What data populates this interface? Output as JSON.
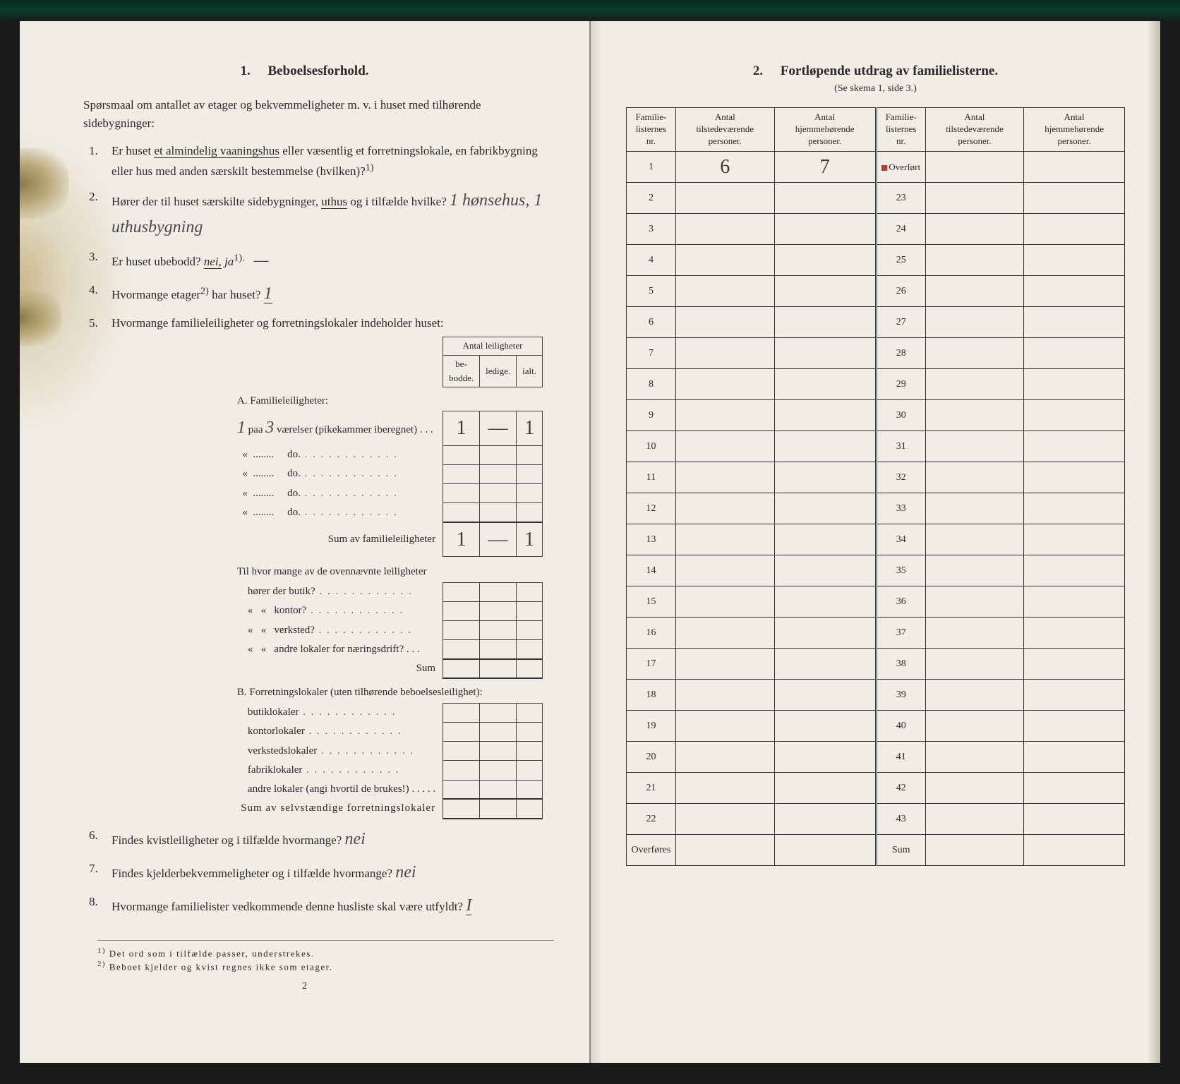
{
  "left": {
    "section_num": "1.",
    "section_title": "Beboelsesforhold.",
    "intro": "Spørsmaal om antallet av etager og bekvemmeligheter m. v. i huset med tilhørende sidebygninger:",
    "q1": "Er huset et almindelig vaaningshus eller væsentlig et forretningslokale, en fabrikbygning eller hus med anden særskilt bestemmelse (hvilken)?",
    "q1_sup": "1)",
    "q2": "Hører der til huset særskilte sidebygninger, uthus og i tilfælde hvilke?",
    "q2_hand": "1 hønsehus, 1 uthusbygning",
    "q3_a": "Er huset ubebodd?",
    "q3_b": "nei,",
    "q3_c": " ja",
    "q3_sup": "1).",
    "q3_hand": "—",
    "q4_a": "Hvormange etager",
    "q4_sup": "2)",
    "q4_b": " har huset?",
    "q4_hand": "1",
    "q5": "Hvormange familieleiligheter og forretningslokaler indeholder huset:",
    "tbl_header": "Antal leiligheter",
    "tbl_h1": "be-\nbodde.",
    "tbl_h2": "ledige.",
    "tbl_h3": "ialt.",
    "a_title": "A. Familieleiligheter:",
    "a_row1_pre": "1",
    "a_row1_mid": " paa ",
    "a_row1_hand": "3",
    "a_row1_post": " værelser (pikekammer iberegnet)",
    "a_row_do": "do.",
    "a_sum": "Sum av familieleiligheter",
    "a_v1": "1",
    "a_v2": "—",
    "a_v3": "1",
    "a_sum_v1": "1",
    "a_sum_v2": "—",
    "a_sum_v3": "1",
    "sub_q": "Til hvor mange av de ovennævnte leiligheter",
    "sub_1": "hører der butik?",
    "sub_2": "kontor?",
    "sub_3": "verksted?",
    "sub_4": "andre lokaler for næringsdrift?",
    "sub_sum": "Sum",
    "b_title": "B. Forretningslokaler (uten tilhørende beboelsesleilighet):",
    "b_1": "butiklokaler",
    "b_2": "kontorlokaler",
    "b_3": "verkstedslokaler",
    "b_4": "fabriklokaler",
    "b_5": "andre lokaler (angi hvortil de brukes!)",
    "b_sum": "Sum av selvstændige forretningslokaler",
    "q6": "Findes kvistleiligheter og i tilfælde hvormange?",
    "q6_hand": "nei",
    "q7": "Findes kjelderbekvemmeligheter og i tilfælde hvormange?",
    "q7_hand": "nei",
    "q8": "Hvormange familielister vedkommende denne husliste skal være utfyldt?",
    "q8_hand": "I",
    "fn1_sup": "1)",
    "fn1": " Det ord som i tilfælde passer, understrekes.",
    "fn2_sup": "2)",
    "fn2": " Beboet kjelder og kvist regnes ikke som etager.",
    "page_num": "2"
  },
  "right": {
    "section_num": "2.",
    "section_title": "Fortløpende utdrag av familielisterne.",
    "subtitle": "(Se skema 1, side 3.)",
    "h1": "Familie-\nlisternes\nnr.",
    "h2": "Antal\ntilstedeværende\npersoner.",
    "h3": "Antal\nhjemmehørende\npersoner.",
    "overfort": "Overført",
    "row1_v1": "6",
    "row1_v2": "7",
    "overfores": "Overføres",
    "sum": "Sum",
    "left_nums": [
      "1",
      "2",
      "3",
      "4",
      "5",
      "6",
      "7",
      "8",
      "9",
      "10",
      "11",
      "12",
      "13",
      "14",
      "15",
      "16",
      "17",
      "18",
      "19",
      "20",
      "21",
      "22"
    ],
    "right_nums": [
      "23",
      "24",
      "25",
      "26",
      "27",
      "28",
      "29",
      "30",
      "31",
      "32",
      "33",
      "34",
      "35",
      "36",
      "37",
      "38",
      "39",
      "40",
      "41",
      "42",
      "43"
    ]
  }
}
